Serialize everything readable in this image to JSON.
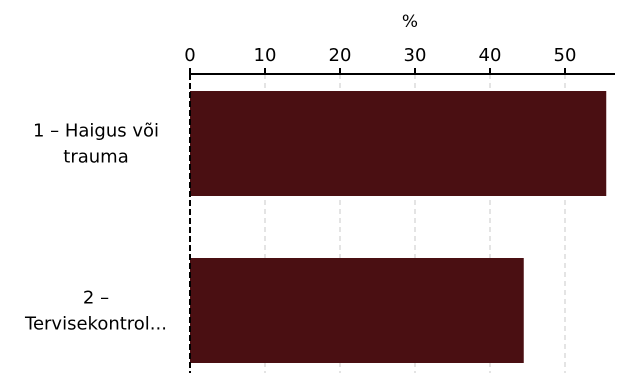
{
  "chart_data": {
    "type": "bar",
    "orientation": "horizontal",
    "xlabel": "%",
    "xlim": [
      0,
      56
    ],
    "xticks": [
      0,
      10,
      20,
      30,
      40,
      50
    ],
    "x_axis_position": "top",
    "grid": true,
    "grid_style": "dashed-vertical",
    "bar_color": "#4a0f12",
    "categories": [
      [
        "1 – Haigus või",
        "trauma"
      ],
      [
        "2 –",
        "Tervisekontrol..."
      ]
    ],
    "values": [
      55.5,
      44.5
    ]
  }
}
